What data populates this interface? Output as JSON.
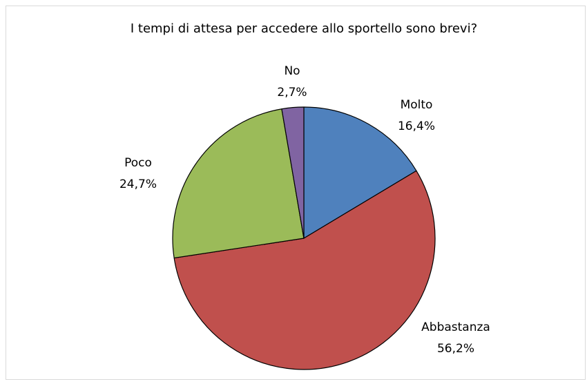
{
  "chart_data": {
    "type": "pie",
    "title": "I tempi di attesa per accedere allo sportello sono brevi?",
    "categories": [
      "Molto",
      "Abbastanza",
      "Poco",
      "No"
    ],
    "values": [
      16.4,
      56.2,
      24.7,
      2.7
    ],
    "value_labels": [
      "16,4%",
      "56,2%",
      "24,7%",
      "2,7%"
    ],
    "colors": [
      "#4f81bd",
      "#c0504d",
      "#9bbb59",
      "#8064a2"
    ]
  }
}
